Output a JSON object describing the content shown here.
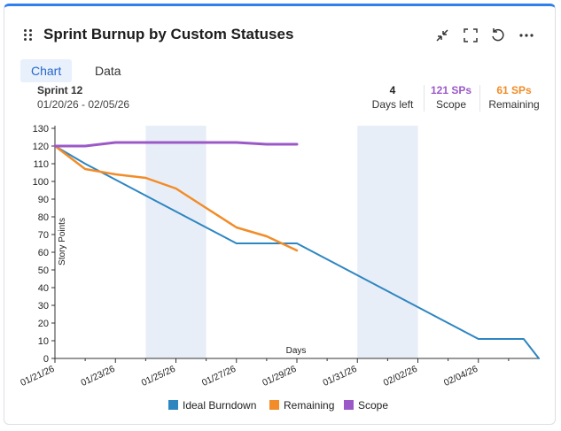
{
  "header": {
    "title": "Sprint Burnup by Custom Statuses"
  },
  "tabs": [
    {
      "label": "Chart",
      "active": true
    },
    {
      "label": "Data",
      "active": false
    }
  ],
  "sprint": {
    "name": "Sprint 12",
    "dates": "01/20/26 - 02/05/26"
  },
  "stats": {
    "days_left": {
      "value": "4",
      "label": "Days left",
      "color": "#333333"
    },
    "scope": {
      "value": "121 SPs",
      "label": "Scope",
      "color": "#9b59c8"
    },
    "remaining": {
      "value": "61 SPs",
      "label": "Remaining",
      "color": "#f28c28"
    }
  },
  "colors": {
    "ideal": "#2e86c1",
    "remaining": "#f28c28",
    "scope": "#9b59c8",
    "weekend": "#e8eef7"
  },
  "chart_data": {
    "type": "line",
    "title": "",
    "xlabel": "Days",
    "ylabel": "Story Points",
    "ylim": [
      0,
      130
    ],
    "yticks": [
      0,
      10,
      20,
      30,
      40,
      50,
      60,
      70,
      80,
      90,
      100,
      110,
      120,
      130
    ],
    "xlim_days": [
      0,
      16
    ],
    "x_start_date": "01/21/26",
    "xtick_labels": [
      "01/21/26",
      "01/23/26",
      "01/25/26",
      "01/27/26",
      "01/29/26",
      "01/31/26",
      "02/02/26",
      "02/04/26"
    ],
    "xtick_days": [
      0,
      2,
      4,
      6,
      8,
      10,
      12,
      14
    ],
    "weekend_bands": [
      [
        3,
        5
      ],
      [
        10,
        12
      ]
    ],
    "legend": [
      "Ideal Burndown",
      "Remaining",
      "Scope"
    ],
    "legend_position": "bottom",
    "series": [
      {
        "name": "Ideal Burndown",
        "x": [
          0,
          1,
          2,
          3,
          4,
          5,
          6,
          7,
          8,
          9,
          10,
          11,
          12,
          13,
          14,
          15,
          15.5,
          16
        ],
        "values": [
          120,
          110,
          101,
          92,
          83,
          74,
          65,
          65,
          65,
          56,
          47,
          38,
          29,
          20,
          11,
          11,
          11,
          0
        ]
      },
      {
        "name": "Remaining",
        "x": [
          0,
          1,
          2,
          3,
          4,
          5,
          6,
          7,
          8
        ],
        "values": [
          120,
          107,
          104,
          102,
          96,
          85,
          74,
          69,
          61
        ]
      },
      {
        "name": "Scope",
        "x": [
          0,
          1,
          2,
          3,
          4,
          5,
          6,
          7,
          8
        ],
        "values": [
          120,
          120,
          122,
          122,
          122,
          122,
          122,
          121,
          121
        ]
      }
    ]
  }
}
